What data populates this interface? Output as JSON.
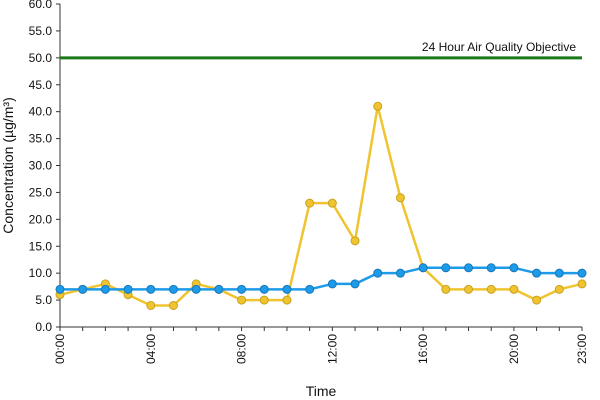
{
  "chart_data": {
    "type": "line",
    "xlabel": "Time",
    "ylabel": "Concentration (µg/m³)",
    "x": [
      "00:00",
      "01:00",
      "02:00",
      "03:00",
      "04:00",
      "05:00",
      "06:00",
      "07:00",
      "08:00",
      "09:00",
      "10:00",
      "11:00",
      "12:00",
      "13:00",
      "14:00",
      "15:00",
      "16:00",
      "17:00",
      "18:00",
      "19:00",
      "20:00",
      "21:00",
      "22:00",
      "23:00"
    ],
    "x_tick_labels": [
      "00:00",
      "04:00",
      "08:00",
      "12:00",
      "16:00",
      "20:00",
      "23:00"
    ],
    "ylim": [
      0,
      60
    ],
    "y_tick_labels": [
      "0.0",
      "5.0",
      "10.0",
      "15.0",
      "20.0",
      "25.0",
      "30.0",
      "35.0",
      "40.0",
      "45.0",
      "50.0",
      "55.0",
      "60.0"
    ],
    "grid": false,
    "series": [
      {
        "color": "#f0c430",
        "values": [
          6,
          7,
          8,
          6,
          4,
          4,
          8,
          7,
          5,
          5,
          5,
          23,
          23,
          16,
          41,
          24,
          11,
          7,
          7,
          7,
          7,
          5,
          7,
          8
        ]
      },
      {
        "color": "#1e9be8",
        "values": [
          7,
          7,
          7,
          7,
          7,
          7,
          7,
          7,
          7,
          7,
          7,
          7,
          8,
          8,
          10,
          10,
          11,
          11,
          11,
          11,
          11,
          10,
          10,
          10
        ]
      }
    ],
    "reference_line": {
      "label": "24 Hour Air Quality Objective",
      "value": 50,
      "color": "#1a7a1a"
    }
  }
}
